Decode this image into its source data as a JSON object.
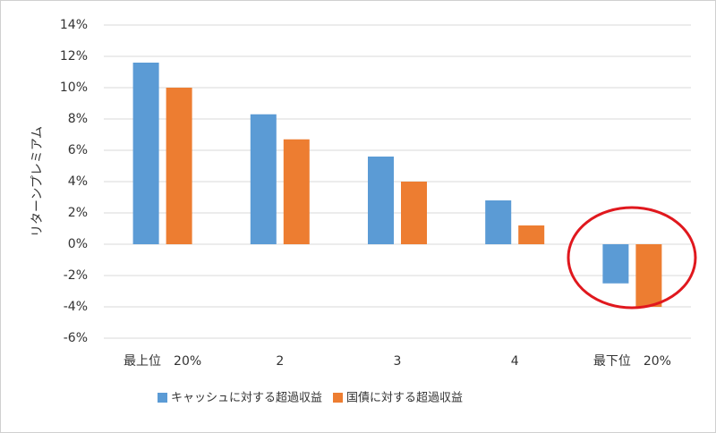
{
  "chart_data": {
    "type": "bar",
    "categories": [
      "最上位　20%",
      "2",
      "3",
      "4",
      "最下位　20%"
    ],
    "series": [
      {
        "name": "キャッシュに対する超過収益",
        "color": "#5b9bd5",
        "values": [
          11.6,
          8.3,
          5.6,
          2.8,
          -2.5
        ]
      },
      {
        "name": "国債に対する超過収益",
        "color": "#ed7d31",
        "values": [
          10.0,
          6.7,
          4.0,
          1.2,
          -4.0
        ]
      }
    ],
    "y_label": "リターンプレミアム",
    "ylim": [
      -6,
      14
    ],
    "yticks": [
      {
        "value": -6,
        "label": "-6%"
      },
      {
        "value": -4,
        "label": "-4%"
      },
      {
        "value": -2,
        "label": "-2%"
      },
      {
        "value": 0,
        "label": "0%"
      },
      {
        "value": 2,
        "label": "2%"
      },
      {
        "value": 4,
        "label": "4%"
      },
      {
        "value": 6,
        "label": "6%"
      },
      {
        "value": 8,
        "label": "8%"
      },
      {
        "value": 10,
        "label": "10%"
      },
      {
        "value": 12,
        "label": "12%"
      },
      {
        "value": 14,
        "label": "14%"
      }
    ],
    "grid": true,
    "legend": "bottom"
  }
}
